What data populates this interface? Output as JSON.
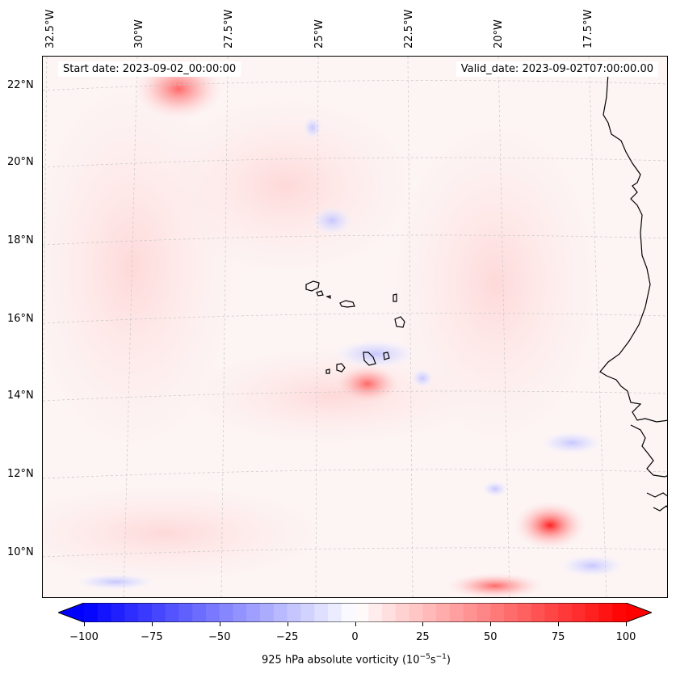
{
  "map": {
    "start_date": "Start date: 2023-09-02_00:00:00",
    "valid_date": "Valid_date: 2023-09-02T07:00:00.00",
    "lon_labels": [
      "32.5°W",
      "30°W",
      "27.5°W",
      "25°W",
      "22.5°W",
      "20°W",
      "17.5°W"
    ],
    "lat_labels": [
      "22°N",
      "20°N",
      "18°N",
      "16°N",
      "14°N",
      "12°N",
      "10°N"
    ],
    "coastline_color": "#000000",
    "gridline_color": "#c8c8c8"
  },
  "colorbar": {
    "ticks": [
      "−100",
      "−75",
      "−50",
      "−25",
      "0",
      "25",
      "50",
      "75",
      "100"
    ],
    "tick_values": [
      -100,
      -75,
      -50,
      -25,
      0,
      25,
      50,
      75,
      100
    ],
    "min": -100,
    "max": 100,
    "levels": 40,
    "label_main": "925 hPa absolute vorticity (10",
    "label_exp1": "−5",
    "label_mid": "s",
    "label_exp2": "−1",
    "label_end": ")",
    "low_color": "#0000ff",
    "mid_color": "#ffffff",
    "high_color": "#ff0000"
  },
  "features": [
    {
      "name": "vortex-northwest",
      "lon": -29.7,
      "lat": 21.9,
      "value": 40
    },
    {
      "name": "vortex-south-cape-verde",
      "lon": -23.4,
      "lat": 14.3,
      "value": 35
    },
    {
      "name": "vortex-north-cape-verde",
      "lon": -23.6,
      "lat": 15.1,
      "value": -20
    },
    {
      "name": "vortex-southeast",
      "lon": -18.8,
      "lat": 10.7,
      "value": 75
    },
    {
      "name": "vortex-blue-18n",
      "lon": -24.4,
      "lat": 18.4,
      "value": -15
    }
  ]
}
